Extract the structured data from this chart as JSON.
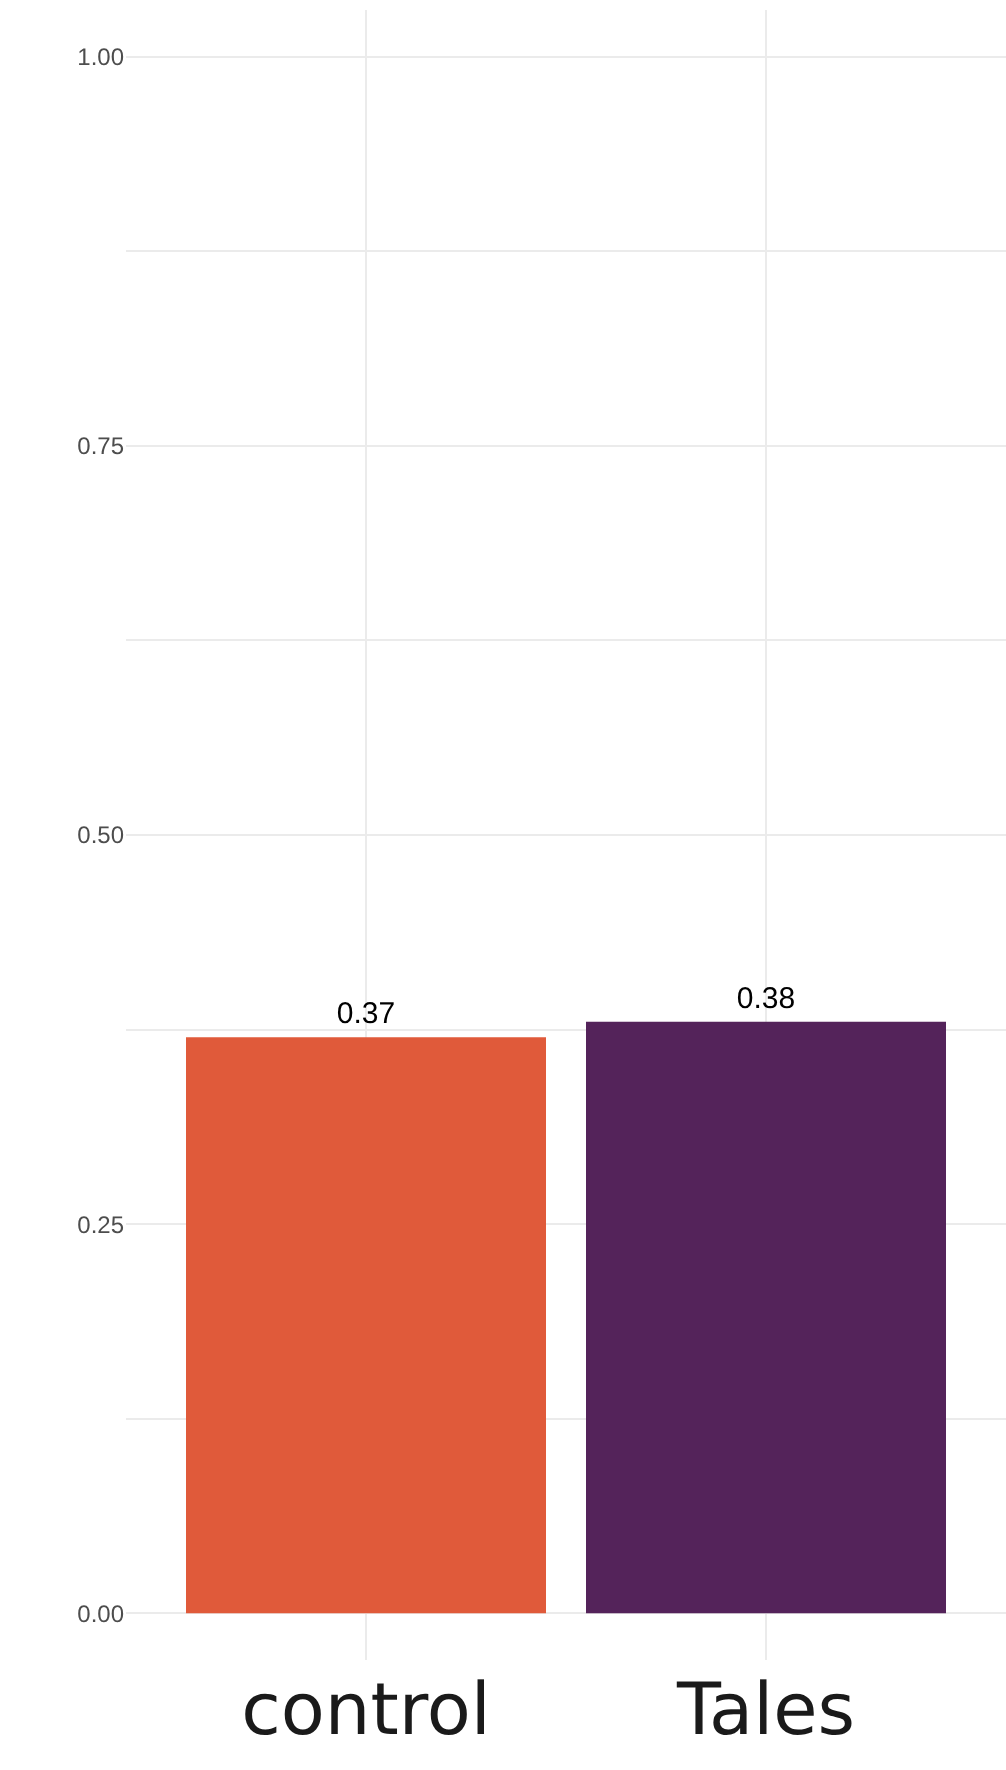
{
  "chart_data": {
    "type": "bar",
    "categories": [
      "control",
      "Tales"
    ],
    "values": [
      0.37,
      0.38
    ],
    "colors": [
      "#e05a3a",
      "#54235a"
    ],
    "ylim": [
      -0.03,
      1.03
    ],
    "yticks": [
      {
        "value": 0,
        "label": "0.00"
      },
      {
        "value": 0.125,
        "label": null
      },
      {
        "value": 0.25,
        "label": "0.25"
      },
      {
        "value": 0.375,
        "label": null
      },
      {
        "value": 0.5,
        "label": "0.50"
      },
      {
        "value": 0.625,
        "label": null
      },
      {
        "value": 0.75,
        "label": "0.75"
      },
      {
        "value": 0.875,
        "label": null
      },
      {
        "value": 1,
        "label": "1.00"
      }
    ],
    "grid": true,
    "data_labels": true
  }
}
